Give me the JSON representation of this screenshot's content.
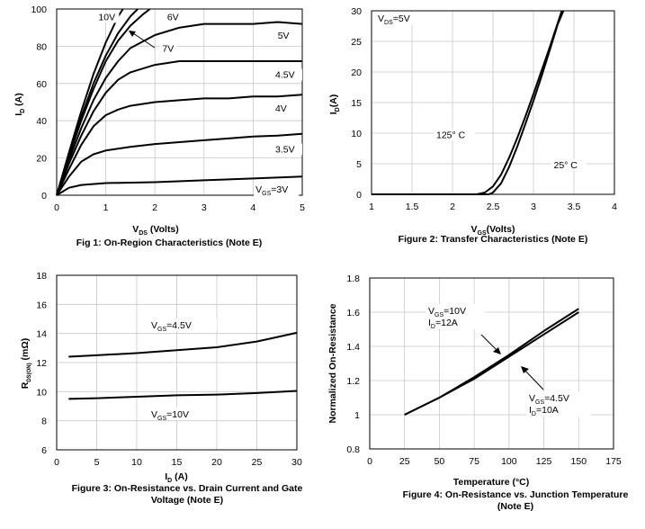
{
  "chart_data": [
    {
      "id": "fig1",
      "type": "line",
      "caption": "Fig 1: On-Region Characteristics (Note E)",
      "xlabel": {
        "main": "V",
        "sub": "DS",
        "rest": " (Volts)"
      },
      "ylabel": {
        "main": "I",
        "sub": "D",
        "rest": " (A)"
      },
      "xlim": [
        0,
        5
      ],
      "ylim": [
        0,
        100
      ],
      "xticks": [
        0,
        1,
        2,
        3,
        4,
        5
      ],
      "yticks": [
        0,
        20,
        40,
        60,
        80,
        100
      ],
      "grid": true,
      "series": [
        {
          "name": "10V",
          "points": [
            [
              0,
              0
            ],
            [
              0.25,
              23
            ],
            [
              0.5,
              45
            ],
            [
              0.75,
              65
            ],
            [
              1,
              82
            ],
            [
              1.25,
              96
            ],
            [
              1.35,
              100
            ]
          ]
        },
        {
          "name": "7V",
          "points": [
            [
              0,
              0
            ],
            [
              0.25,
              22
            ],
            [
              0.5,
              42
            ],
            [
              0.75,
              60
            ],
            [
              1,
              75
            ],
            [
              1.25,
              87
            ],
            [
              1.5,
              96
            ],
            [
              1.65,
              100
            ]
          ]
        },
        {
          "name": "6V",
          "points": [
            [
              0,
              0
            ],
            [
              0.25,
              21
            ],
            [
              0.5,
              40
            ],
            [
              0.75,
              57
            ],
            [
              1,
              72
            ],
            [
              1.25,
              83
            ],
            [
              1.5,
              91
            ],
            [
              1.75,
              97
            ],
            [
              1.9,
              100
            ]
          ]
        },
        {
          "name": "5V",
          "points": [
            [
              0,
              0
            ],
            [
              0.25,
              19
            ],
            [
              0.5,
              36
            ],
            [
              0.75,
              51
            ],
            [
              1,
              63
            ],
            [
              1.25,
              72
            ],
            [
              1.5,
              79
            ],
            [
              2,
              86
            ],
            [
              2.5,
              90
            ],
            [
              3,
              92
            ],
            [
              3.5,
              92
            ],
            [
              4,
              92
            ],
            [
              4.5,
              93
            ],
            [
              5,
              92
            ]
          ]
        },
        {
          "name": "4.5V",
          "points": [
            [
              0,
              0
            ],
            [
              0.25,
              17
            ],
            [
              0.5,
              32
            ],
            [
              0.75,
              45
            ],
            [
              1,
              55
            ],
            [
              1.25,
              62
            ],
            [
              1.5,
              66
            ],
            [
              2,
              70
            ],
            [
              2.5,
              72
            ],
            [
              3,
              72
            ],
            [
              3.5,
              72
            ],
            [
              4,
              72
            ],
            [
              4.5,
              72
            ],
            [
              5,
              72
            ]
          ]
        },
        {
          "name": "4V",
          "points": [
            [
              0,
              0
            ],
            [
              0.25,
              14
            ],
            [
              0.5,
              27
            ],
            [
              0.75,
              37
            ],
            [
              1,
              43
            ],
            [
              1.25,
              46
            ],
            [
              1.5,
              48
            ],
            [
              2,
              50
            ],
            [
              2.5,
              51
            ],
            [
              3,
              52
            ],
            [
              3.5,
              52
            ],
            [
              4,
              53
            ],
            [
              4.5,
              53
            ],
            [
              5,
              54
            ]
          ]
        },
        {
          "name": "3.5V",
          "points": [
            [
              0,
              0
            ],
            [
              0.25,
              10
            ],
            [
              0.5,
              18
            ],
            [
              0.75,
              22
            ],
            [
              1,
              24
            ],
            [
              1.5,
              26
            ],
            [
              2,
              27.5
            ],
            [
              2.5,
              28.5
            ],
            [
              3,
              29.5
            ],
            [
              3.5,
              30.5
            ],
            [
              4,
              31.5
            ],
            [
              4.5,
              32
            ],
            [
              5,
              33
            ]
          ]
        },
        {
          "name": "VGS=3V",
          "points": [
            [
              0,
              0
            ],
            [
              0.25,
              4
            ],
            [
              0.5,
              5.5
            ],
            [
              1,
              6.5
            ],
            [
              2,
              7
            ],
            [
              3,
              8
            ],
            [
              4,
              9
            ],
            [
              5,
              10
            ]
          ]
        }
      ],
      "labels": [
        {
          "text": "10V",
          "x": 0.85,
          "y": 94
        },
        {
          "text": "6V",
          "x": 2.25,
          "y": 94
        },
        {
          "text": "7V",
          "x": 2.15,
          "y": 77
        },
        {
          "text": "5V",
          "x": 4.5,
          "y": 84
        },
        {
          "text": "4.5V",
          "x": 4.45,
          "y": 63
        },
        {
          "text": "4V",
          "x": 4.45,
          "y": 45
        },
        {
          "text": "3.5V",
          "x": 4.45,
          "y": 23
        }
      ],
      "vgs_label": {
        "main": "V",
        "sub": "GS",
        "rest": "=3V"
      }
    },
    {
      "id": "fig2",
      "type": "line",
      "caption": "Figure 2: Transfer Characteristics (Note E)",
      "xlabel": {
        "main": "V",
        "sub": "GS",
        "rest": "(Volts)"
      },
      "ylabel": {
        "main": "I",
        "sub": "D",
        "rest": "(A)"
      },
      "xlim": [
        1,
        4
      ],
      "ylim": [
        0,
        30
      ],
      "xticks": [
        "1",
        "1.5",
        "2",
        "2.5",
        "3",
        "3.5",
        "4"
      ],
      "yticks": [
        0,
        5,
        10,
        15,
        20,
        25,
        30
      ],
      "grid": true,
      "series": [
        {
          "name": "125° C",
          "points": [
            [
              1,
              0
            ],
            [
              2.3,
              0
            ],
            [
              2.4,
              0.3
            ],
            [
              2.5,
              1.3
            ],
            [
              2.6,
              3.2
            ],
            [
              2.7,
              6
            ],
            [
              2.8,
              9.2
            ],
            [
              2.9,
              12.7
            ],
            [
              3,
              16.4
            ],
            [
              3.1,
              20.2
            ],
            [
              3.2,
              24
            ],
            [
              3.3,
              28
            ],
            [
              3.35,
              30
            ]
          ]
        },
        {
          "name": "25° C",
          "points": [
            [
              1,
              0
            ],
            [
              2.45,
              0
            ],
            [
              2.5,
              0.3
            ],
            [
              2.6,
              1.8
            ],
            [
              2.7,
              4.5
            ],
            [
              2.8,
              7.8
            ],
            [
              2.9,
              11.5
            ],
            [
              3,
              15.3
            ],
            [
              3.1,
              19.3
            ],
            [
              3.2,
              23.5
            ],
            [
              3.3,
              27.8
            ],
            [
              3.37,
              30
            ]
          ]
        }
      ],
      "labels": [
        {
          "text": "125° C",
          "x": 1.8,
          "y": 9.2
        },
        {
          "text": "25° C",
          "x": 3.25,
          "y": 4.3
        }
      ],
      "vds_label": {
        "main": "V",
        "sub": "DS",
        "rest": "=5V"
      }
    },
    {
      "id": "fig3",
      "type": "line",
      "caption_lines": [
        "Figure 3: On-Resistance vs. Drain Current and Gate",
        "Voltage (Note E)"
      ],
      "xlabel": {
        "main": "I",
        "sub": "D",
        "rest": " (A)"
      },
      "ylabel": {
        "main": "R",
        "sub": "DS(ON)",
        "rest": " (mΩ)"
      },
      "xlim": [
        0,
        30
      ],
      "ylim": [
        6,
        18
      ],
      "xticks": [
        0,
        5,
        10,
        15,
        20,
        25,
        30
      ],
      "yticks": [
        6,
        8,
        10,
        12,
        14,
        16,
        18
      ],
      "grid": true,
      "series": [
        {
          "name": "VGS=4.5V",
          "points": [
            [
              1.5,
              12.4
            ],
            [
              5,
              12.5
            ],
            [
              10,
              12.65
            ],
            [
              15,
              12.85
            ],
            [
              20,
              13.05
            ],
            [
              25,
              13.45
            ],
            [
              30,
              14.05
            ]
          ]
        },
        {
          "name": "VGS=10V",
          "points": [
            [
              1.5,
              9.5
            ],
            [
              5,
              9.55
            ],
            [
              10,
              9.65
            ],
            [
              15,
              9.75
            ],
            [
              20,
              9.8
            ],
            [
              25,
              9.9
            ],
            [
              30,
              10.05
            ]
          ]
        }
      ],
      "label_45": {
        "main": "V",
        "sub": "GS",
        "rest": "=4.5V"
      },
      "label_10": {
        "main": "V",
        "sub": "GS",
        "rest": "=10V"
      }
    },
    {
      "id": "fig4",
      "type": "line",
      "caption_lines": [
        "Figure 4: On-Resistance vs. Junction Temperature",
        "(Note E)"
      ],
      "xlabel": "Temperature (°C)",
      "ylabel": "Normalized On-Resistance",
      "xlim": [
        0,
        175
      ],
      "ylim": [
        0.8,
        1.8
      ],
      "xticks": [
        0,
        25,
        50,
        75,
        100,
        125,
        150,
        175
      ],
      "yticks": [
        "0.8",
        "1",
        "1.2",
        "1.4",
        "1.6",
        "1.8"
      ],
      "grid": true,
      "series": [
        {
          "name": "VGS=10V, ID=12A",
          "points": [
            [
              25,
              1.0
            ],
            [
              50,
              1.1
            ],
            [
              75,
              1.22
            ],
            [
              100,
              1.35
            ],
            [
              125,
              1.49
            ],
            [
              150,
              1.62
            ]
          ]
        },
        {
          "name": "VGS=4.5V, ID=10A",
          "points": [
            [
              25,
              1.0
            ],
            [
              50,
              1.1
            ],
            [
              75,
              1.21
            ],
            [
              100,
              1.34
            ],
            [
              125,
              1.47
            ],
            [
              150,
              1.6
            ]
          ]
        }
      ],
      "label_a": [
        {
          "main": "V",
          "sub": "GS",
          "rest": "=10V"
        },
        {
          "main": "I",
          "sub": "D",
          "rest": "=12A"
        }
      ],
      "label_b": [
        {
          "main": "V",
          "sub": "GS",
          "rest": "=4.5V"
        },
        {
          "main": "I",
          "sub": "D",
          "rest": "=10A"
        }
      ]
    }
  ]
}
